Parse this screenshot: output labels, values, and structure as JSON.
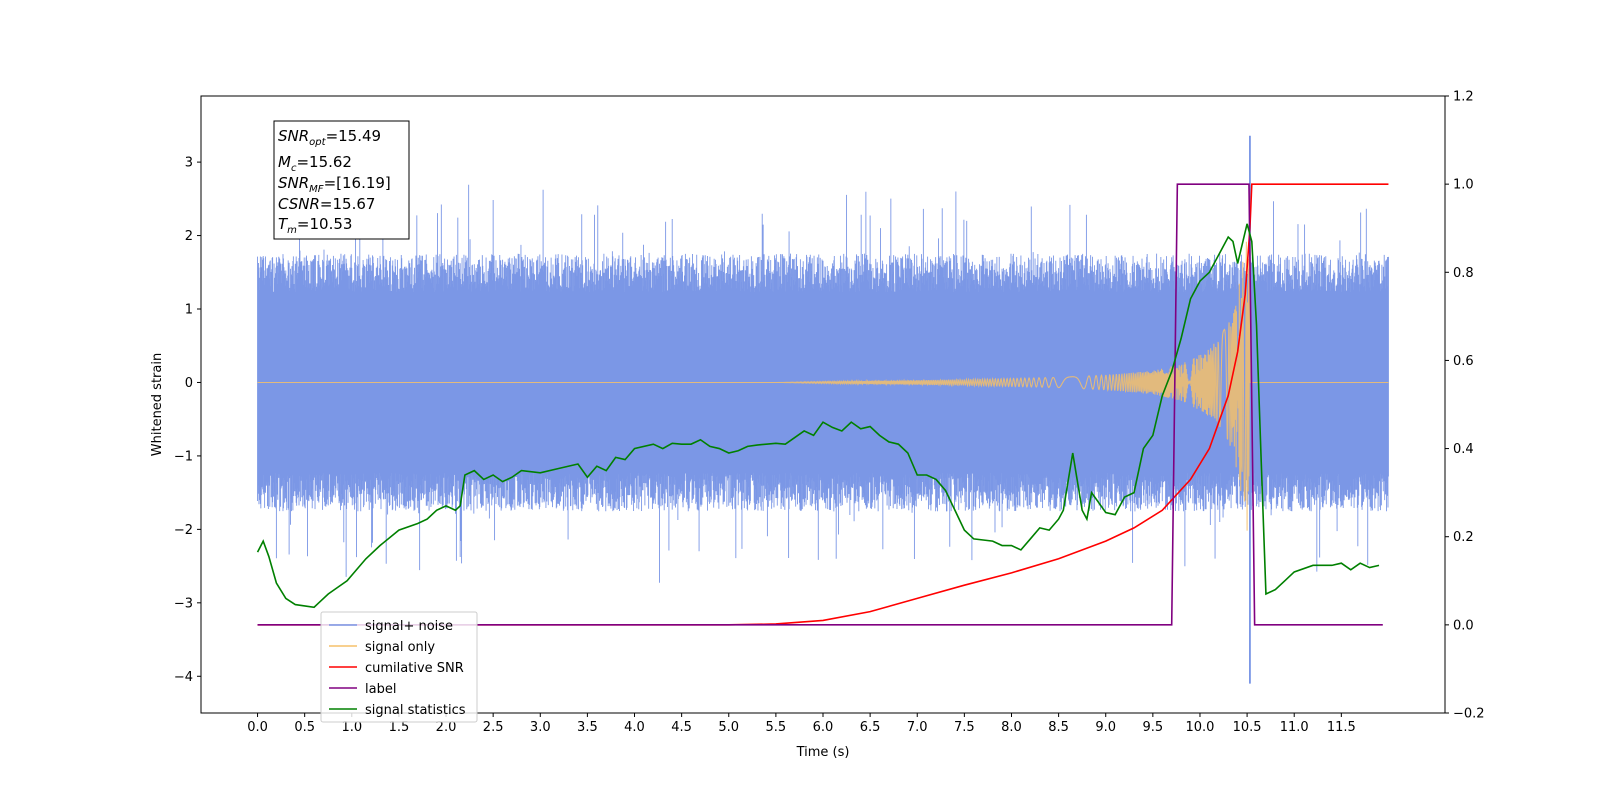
{
  "chart_data": {
    "type": "line",
    "xlabel": "Time (s)",
    "ylabel": "Whitened strain",
    "xlim": [
      -0.6,
      12.6
    ],
    "ylim": [
      -4.5,
      3.9
    ],
    "y2lim": [
      -0.2,
      1.2
    ],
    "x_ticks": [
      "0.0",
      "0.5",
      "1.0",
      "1.5",
      "2.0",
      "2.5",
      "3.0",
      "3.5",
      "4.0",
      "4.5",
      "5.0",
      "5.5",
      "6.0",
      "6.5",
      "7.0",
      "7.5",
      "8.0",
      "8.5",
      "9.0",
      "9.5",
      "10.0",
      "10.5",
      "11.0",
      "11.5"
    ],
    "y_ticks": [
      "3",
      "2",
      "1",
      "0",
      "−1",
      "−2",
      "−3",
      "−4"
    ],
    "y2_ticks": [
      "1.2",
      "1.0",
      "0.8",
      "0.6",
      "0.4",
      "0.2",
      "0.0",
      "−0.2"
    ],
    "annotation": {
      "lines": [
        {
          "name": "SNR",
          "sub": "opt",
          "value": "=15.49"
        },
        {
          "name": "M",
          "sub": "c",
          "value": "=15.62"
        },
        {
          "name": "SNR",
          "sub": "MF",
          "value": "=[16.19]"
        },
        {
          "name": "CSNR",
          "sub": "",
          "value": "=15.67"
        },
        {
          "name": "T",
          "sub": "m",
          "value": "=10.53"
        }
      ]
    },
    "legend": {
      "placement": "lower-left",
      "entries": [
        {
          "label": "signal+ noise",
          "color": "#7b97e6"
        },
        {
          "label": "signal only",
          "color": "#f5c06a"
        },
        {
          "label": "cumilative SNR",
          "color": "#ff0000"
        },
        {
          "label": "label",
          "color": "#800080"
        },
        {
          "label": "signal statistics",
          "color": "#008000"
        }
      ]
    },
    "noise_envelope": {
      "axis": "left",
      "t_start": 0.0,
      "t_end": 12.0,
      "typical_low": -1.5,
      "typical_high": 1.5,
      "peak_high": 3.36,
      "peak_low": -4.1,
      "peak_time": 10.53
    },
    "signal_only": {
      "axis": "left",
      "t": [
        0.0,
        5.5,
        6.5,
        7.5,
        8.5,
        9.0,
        9.5,
        9.8,
        10.0,
        10.2,
        10.35,
        10.45,
        10.53,
        10.56,
        12.0
      ],
      "amplitude": [
        0.0,
        0.0,
        0.02,
        0.04,
        0.07,
        0.1,
        0.16,
        0.25,
        0.38,
        0.58,
        0.95,
        1.6,
        2.3,
        0.02,
        0.0
      ]
    },
    "series": [
      {
        "name": "cumilative SNR",
        "axis": "right",
        "x": [
          0.0,
          5.0,
          5.5,
          6.0,
          6.5,
          7.0,
          7.5,
          8.0,
          8.5,
          9.0,
          9.3,
          9.6,
          9.9,
          10.1,
          10.3,
          10.4,
          10.48,
          10.53,
          10.55,
          12.0
        ],
        "y": [
          0.0,
          0.0,
          0.002,
          0.01,
          0.03,
          0.06,
          0.09,
          0.118,
          0.15,
          0.19,
          0.22,
          0.26,
          0.33,
          0.4,
          0.52,
          0.62,
          0.75,
          0.9,
          1.0,
          1.0
        ]
      },
      {
        "name": "label",
        "axis": "right",
        "x": [
          0.0,
          9.7,
          9.76,
          10.52,
          10.58,
          11.94
        ],
        "y": [
          0.0,
          0.0,
          1.0,
          1.0,
          0.0,
          0.0
        ]
      },
      {
        "name": "signal statistics",
        "axis": "right",
        "x": [
          0.0,
          0.06,
          0.12,
          0.2,
          0.3,
          0.4,
          0.5,
          0.6,
          0.65,
          0.75,
          0.85,
          0.95,
          1.05,
          1.15,
          1.3,
          1.5,
          1.7,
          1.8,
          1.9,
          2.0,
          2.1,
          2.15,
          2.2,
          2.3,
          2.4,
          2.5,
          2.6,
          2.7,
          2.8,
          3.0,
          3.2,
          3.4,
          3.5,
          3.6,
          3.7,
          3.8,
          3.9,
          4.0,
          4.2,
          4.3,
          4.4,
          4.5,
          4.6,
          4.7,
          4.8,
          4.9,
          5.0,
          5.1,
          5.2,
          5.3,
          5.5,
          5.6,
          5.7,
          5.8,
          5.9,
          6.0,
          6.1,
          6.2,
          6.3,
          6.4,
          6.5,
          6.6,
          6.7,
          6.8,
          6.9,
          7.0,
          7.1,
          7.2,
          7.3,
          7.4,
          7.5,
          7.6,
          7.8,
          7.9,
          8.0,
          8.1,
          8.2,
          8.3,
          8.4,
          8.5,
          8.55,
          8.65,
          8.75,
          8.8,
          8.85,
          9.0,
          9.1,
          9.2,
          9.3,
          9.4,
          9.5,
          9.6,
          9.7,
          9.8,
          9.9,
          10.0,
          10.1,
          10.2,
          10.3,
          10.35,
          10.4,
          10.5,
          10.55,
          10.6,
          10.65,
          10.7,
          10.8,
          10.9,
          11.0,
          11.2,
          11.4,
          11.5,
          11.6,
          11.7,
          11.8,
          11.9
        ],
        "y": [
          0.165,
          0.19,
          0.155,
          0.095,
          0.06,
          0.046,
          0.043,
          0.04,
          0.05,
          0.07,
          0.085,
          0.1,
          0.125,
          0.15,
          0.18,
          0.215,
          0.23,
          0.24,
          0.26,
          0.27,
          0.26,
          0.27,
          0.34,
          0.35,
          0.33,
          0.34,
          0.325,
          0.335,
          0.35,
          0.345,
          0.355,
          0.365,
          0.335,
          0.36,
          0.35,
          0.38,
          0.375,
          0.4,
          0.41,
          0.4,
          0.412,
          0.41,
          0.41,
          0.42,
          0.405,
          0.4,
          0.39,
          0.395,
          0.405,
          0.408,
          0.412,
          0.41,
          0.425,
          0.44,
          0.43,
          0.46,
          0.448,
          0.44,
          0.46,
          0.445,
          0.45,
          0.43,
          0.415,
          0.41,
          0.39,
          0.34,
          0.34,
          0.33,
          0.305,
          0.26,
          0.215,
          0.195,
          0.19,
          0.18,
          0.18,
          0.17,
          0.195,
          0.22,
          0.215,
          0.24,
          0.26,
          0.39,
          0.26,
          0.24,
          0.3,
          0.255,
          0.25,
          0.29,
          0.3,
          0.4,
          0.43,
          0.52,
          0.575,
          0.65,
          0.74,
          0.78,
          0.8,
          0.84,
          0.88,
          0.87,
          0.82,
          0.91,
          0.87,
          0.68,
          0.37,
          0.07,
          0.08,
          0.1,
          0.12,
          0.135,
          0.135,
          0.14,
          0.125,
          0.14,
          0.13,
          0.135
        ]
      }
    ]
  }
}
